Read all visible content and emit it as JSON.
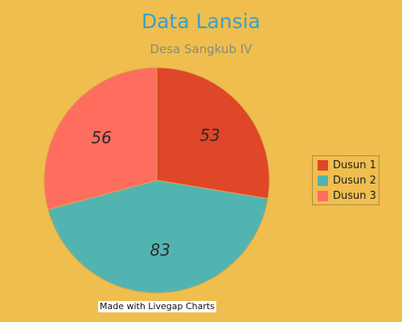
{
  "chart_data": {
    "type": "pie",
    "title": "Data Lansia",
    "subtitle": "Desa Sangkub IV",
    "categories": [
      "Dusun 1",
      "Dusun 2",
      "Dusun 3"
    ],
    "values": [
      53,
      83,
      56
    ],
    "colors": [
      "#E04628",
      "#52B4B1",
      "#FF6D5E"
    ],
    "legend_position": "right",
    "show_value_labels": true
  },
  "footer": {
    "credit": "Made with Livegap Charts"
  }
}
